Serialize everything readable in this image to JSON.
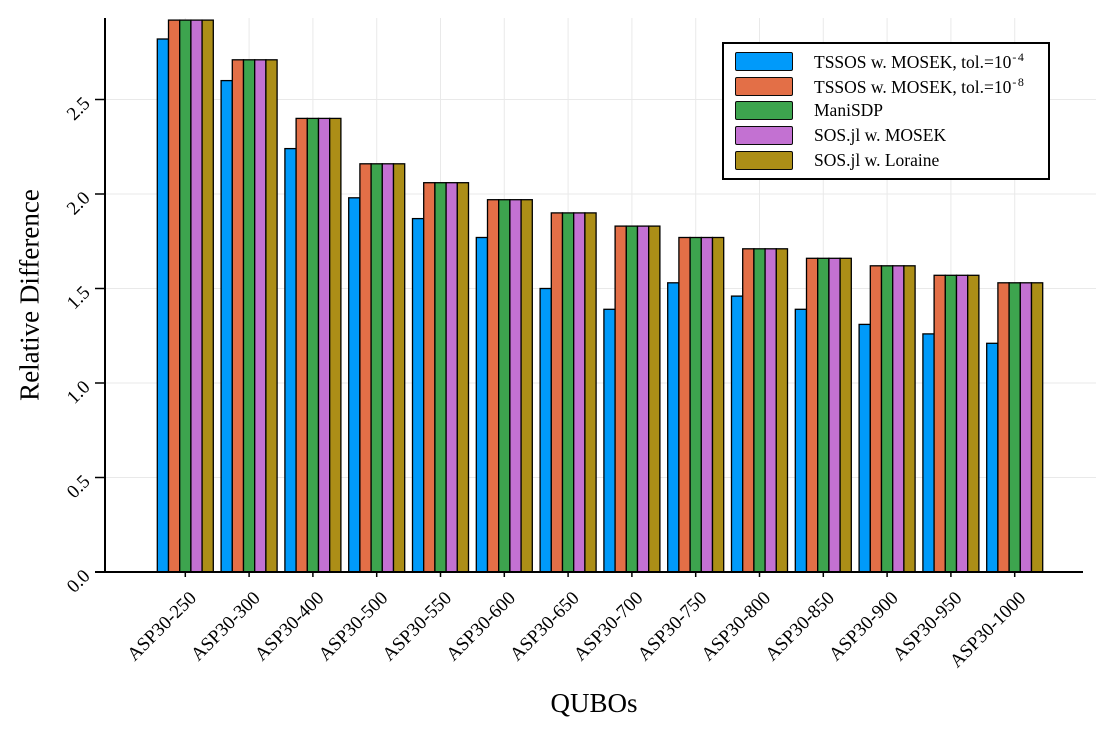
{
  "chart_data": {
    "type": "bar",
    "title": "",
    "xlabel": "QUBOs",
    "ylabel": "Relative Difference",
    "categories": [
      "ASP30-250",
      "ASP30-300",
      "ASP30-400",
      "ASP30-500",
      "ASP30-550",
      "ASP30-600",
      "ASP30-650",
      "ASP30-700",
      "ASP30-750",
      "ASP30-800",
      "ASP30-850",
      "ASP30-900",
      "ASP30-950",
      "ASP30-1000"
    ],
    "series": [
      {
        "name": "TSSOS w. MOSEK, tol.=10⁻⁴",
        "label": "TSSOS w. MOSEK, tol.=10",
        "sup": "-4",
        "color": "#009AFA",
        "values": [
          2.82,
          2.6,
          2.24,
          1.98,
          1.87,
          1.77,
          1.5,
          1.39,
          1.53,
          1.46,
          1.39,
          1.31,
          1.26,
          1.21
        ]
      },
      {
        "name": "TSSOS w. MOSEK, tol.=10⁻⁸",
        "label": "TSSOS w. MOSEK, tol.=10",
        "sup": "-8",
        "color": "#E36F47",
        "values": [
          2.92,
          2.71,
          2.4,
          2.16,
          2.06,
          1.97,
          1.9,
          1.83,
          1.77,
          1.71,
          1.66,
          1.62,
          1.57,
          1.53
        ]
      },
      {
        "name": "ManiSDP",
        "label": "ManiSDP",
        "sup": null,
        "color": "#3DA44E",
        "values": [
          2.92,
          2.71,
          2.4,
          2.16,
          2.06,
          1.97,
          1.9,
          1.83,
          1.77,
          1.71,
          1.66,
          1.62,
          1.57,
          1.53
        ]
      },
      {
        "name": "SOS.jl w. MOSEK",
        "label": "SOS.jl w. MOSEK",
        "sup": null,
        "color": "#C371D2",
        "values": [
          2.92,
          2.71,
          2.4,
          2.16,
          2.06,
          1.97,
          1.9,
          1.83,
          1.77,
          1.71,
          1.66,
          1.62,
          1.57,
          1.53
        ]
      },
      {
        "name": "SOS.jl w. Loraine",
        "label": "SOS.jl w. Loraine",
        "sup": null,
        "color": "#AC8E17",
        "values": [
          2.92,
          2.71,
          2.4,
          2.16,
          2.06,
          1.97,
          1.9,
          1.83,
          1.77,
          1.71,
          1.66,
          1.62,
          1.57,
          1.53
        ]
      }
    ],
    "ylim": [
      0,
      2.93
    ],
    "yticks": [
      0,
      0.5,
      1,
      1.5,
      2,
      2.5
    ],
    "ytick_labels": [
      "0.0",
      "0.5",
      "1.0",
      "1.5",
      "2.0",
      "2.5"
    ],
    "grid": true,
    "legend_position": "top-right",
    "bar_outline_color": "#000000",
    "grid_color": "#E9E9E9",
    "background": "#FFFFFF"
  }
}
